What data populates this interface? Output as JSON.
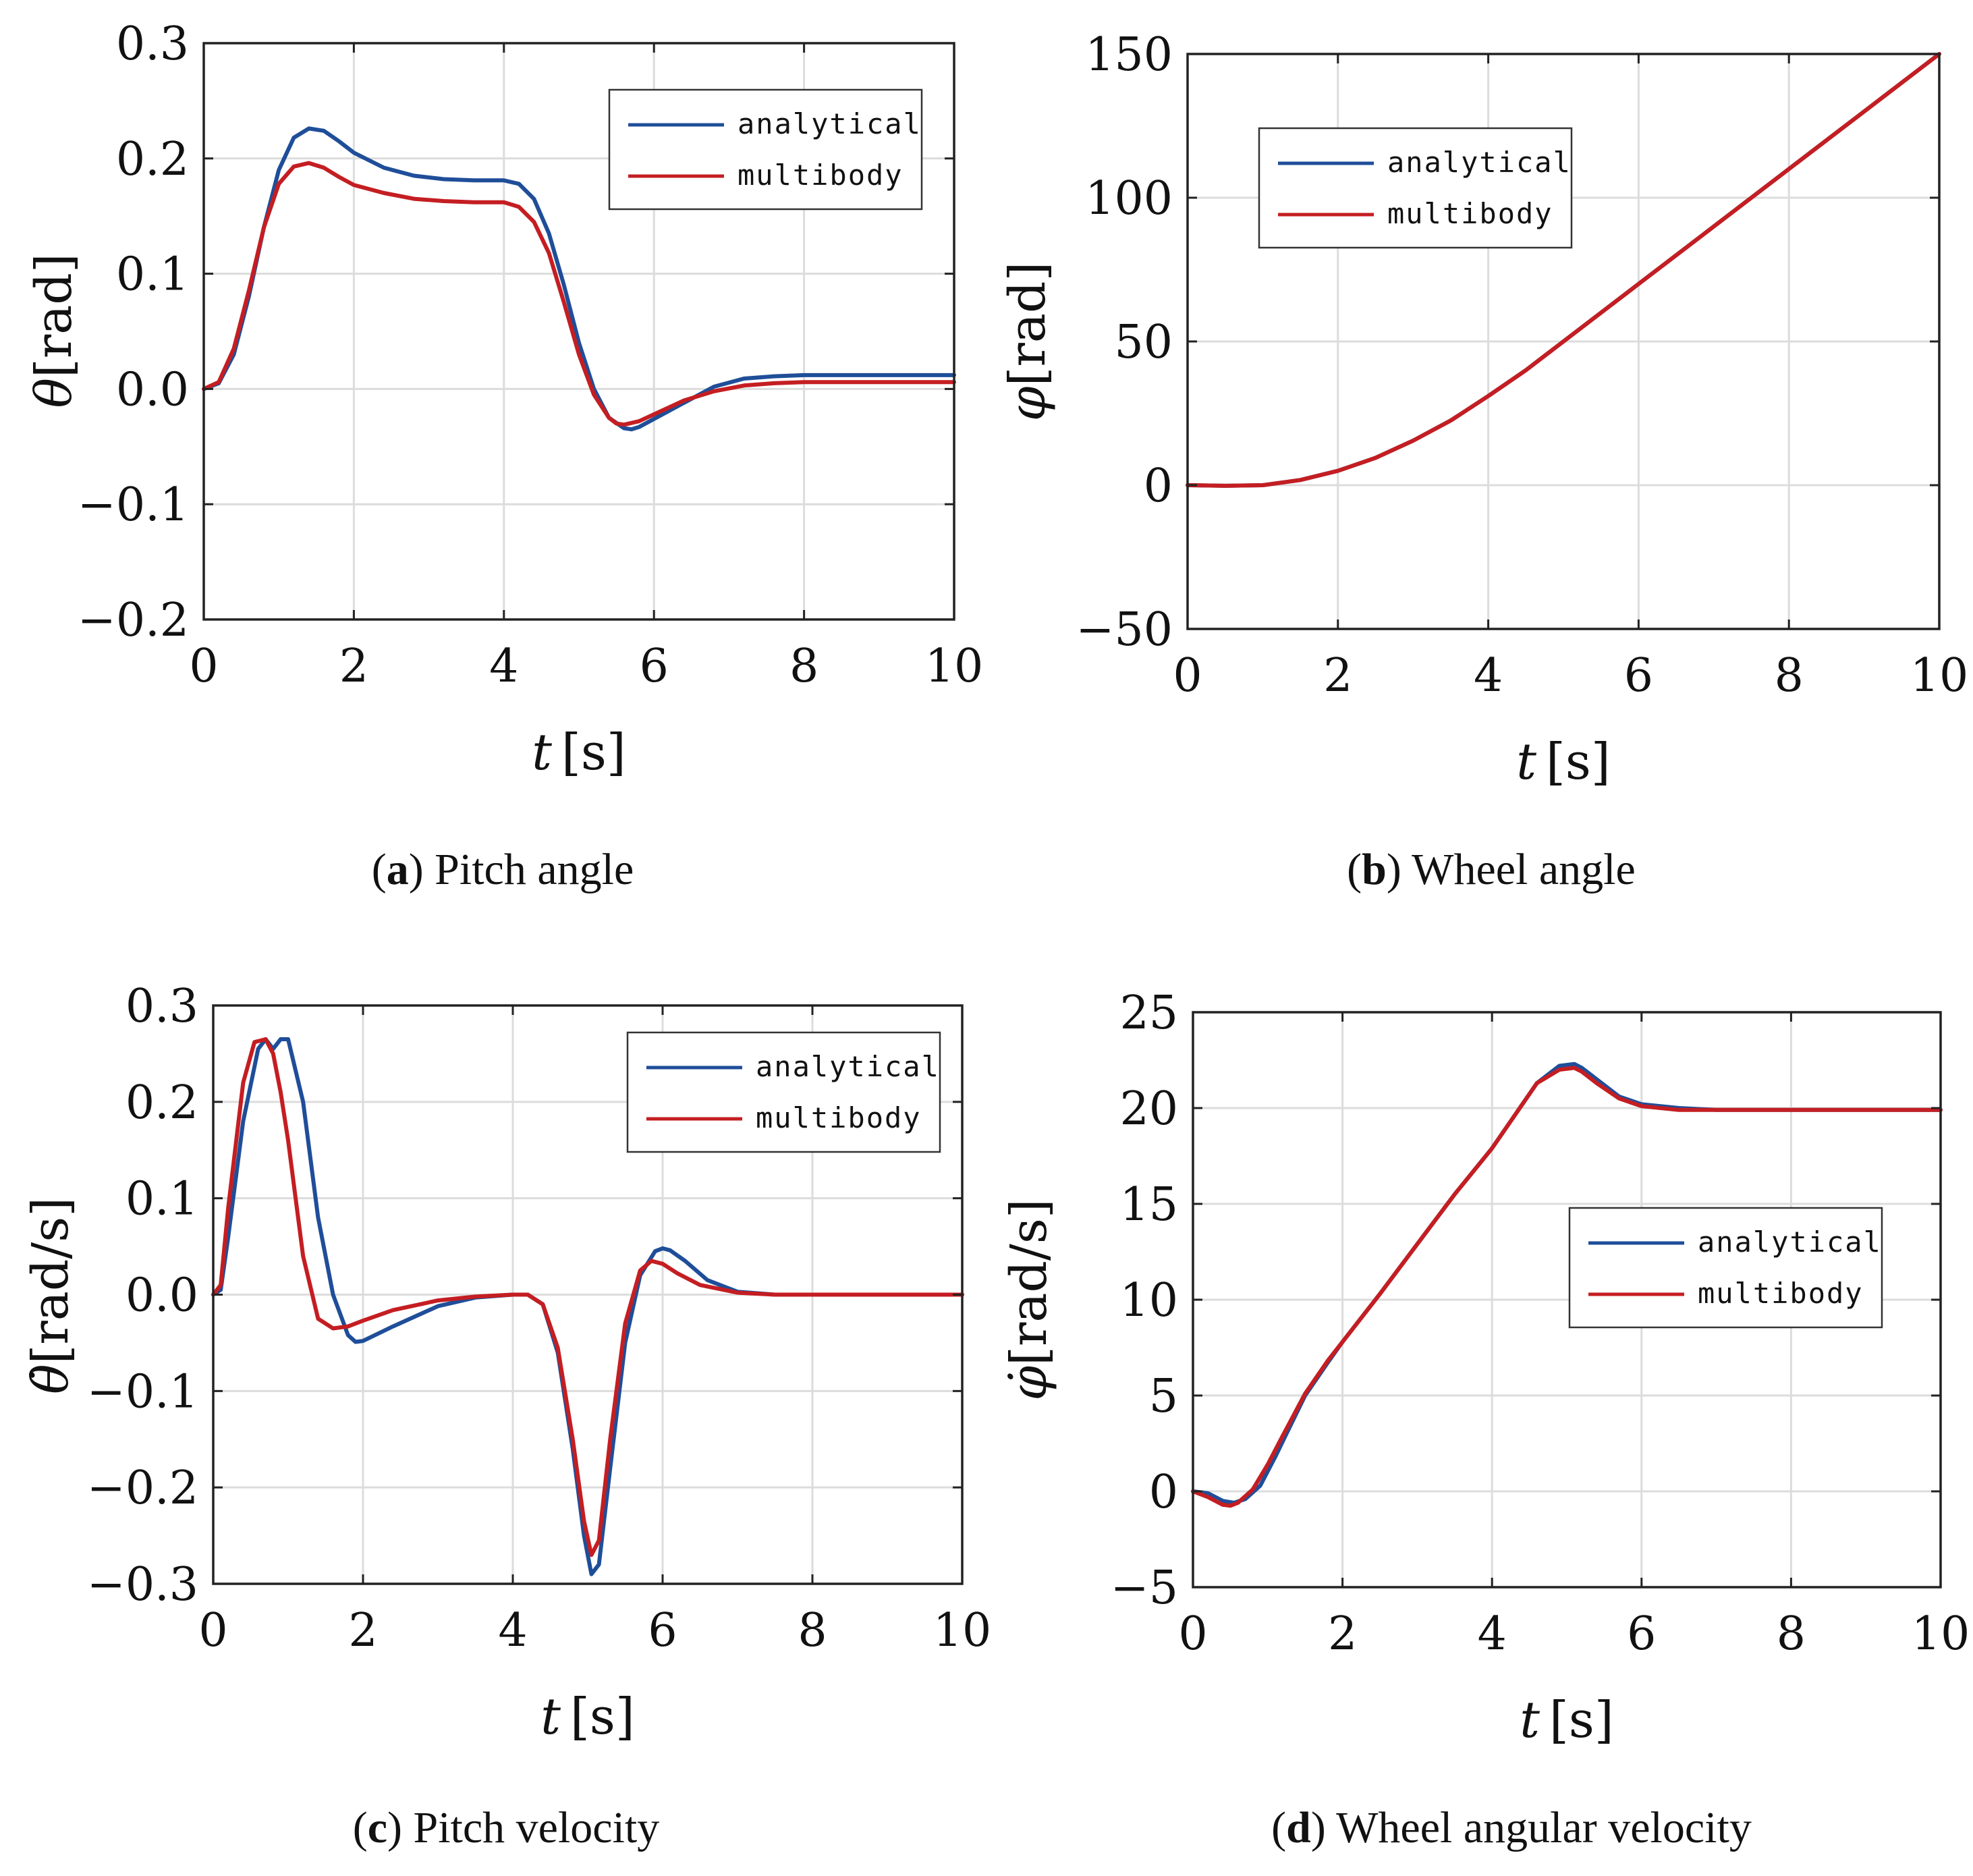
{
  "colors": {
    "analytical": "#1f4e99",
    "multibody": "#c41e22"
  },
  "chart_data": [
    {
      "id": "a",
      "type": "line",
      "caption_letter": "a",
      "caption_text": "Pitch angle",
      "xlabel_var": "t",
      "xlabel_unit": "[s]",
      "ylabel_var": "θ",
      "ylabel_unit": "[rad]",
      "xlim": [
        0,
        10
      ],
      "ylim": [
        -0.2,
        0.3
      ],
      "xticks": [
        0,
        2,
        4,
        6,
        8,
        10
      ],
      "xtick_labels": [
        "0",
        "2",
        "4",
        "6",
        "8",
        "10"
      ],
      "yticks": [
        -0.2,
        -0.1,
        0.0,
        0.1,
        0.2,
        0.3
      ],
      "ytick_labels": [
        "−0.2",
        "−0.1",
        "0.0",
        "0.1",
        "0.2",
        "0.3"
      ],
      "legend": [
        "analytical",
        "multibody"
      ],
      "series": [
        {
          "name": "analytical",
          "x": [
            0,
            0.2,
            0.4,
            0.6,
            0.8,
            1.0,
            1.2,
            1.4,
            1.6,
            1.8,
            2.0,
            2.4,
            2.8,
            3.2,
            3.6,
            4.0,
            4.2,
            4.4,
            4.6,
            4.8,
            5.0,
            5.2,
            5.4,
            5.6,
            5.7,
            5.8,
            6.0,
            6.4,
            6.8,
            7.2,
            7.6,
            8.0,
            9.0,
            10.0
          ],
          "y": [
            0,
            0.005,
            0.03,
            0.08,
            0.14,
            0.19,
            0.218,
            0.226,
            0.224,
            0.215,
            0.205,
            0.192,
            0.185,
            0.182,
            0.181,
            0.181,
            0.178,
            0.165,
            0.135,
            0.09,
            0.04,
            0.0,
            -0.025,
            -0.034,
            -0.035,
            -0.033,
            -0.026,
            -0.012,
            0.002,
            0.009,
            0.011,
            0.012,
            0.012,
            0.012
          ]
        },
        {
          "name": "multibody",
          "x": [
            0,
            0.2,
            0.4,
            0.6,
            0.8,
            1.0,
            1.2,
            1.4,
            1.6,
            1.8,
            2.0,
            2.4,
            2.8,
            3.2,
            3.6,
            4.0,
            4.2,
            4.4,
            4.6,
            4.8,
            5.0,
            5.2,
            5.4,
            5.5,
            5.6,
            5.8,
            6.0,
            6.4,
            6.8,
            7.2,
            7.6,
            8.0,
            9.0,
            10.0
          ],
          "y": [
            0,
            0.006,
            0.035,
            0.085,
            0.14,
            0.178,
            0.193,
            0.196,
            0.192,
            0.184,
            0.177,
            0.17,
            0.165,
            0.163,
            0.162,
            0.162,
            0.158,
            0.145,
            0.118,
            0.075,
            0.03,
            -0.005,
            -0.025,
            -0.03,
            -0.031,
            -0.028,
            -0.022,
            -0.01,
            -0.002,
            0.003,
            0.005,
            0.006,
            0.006,
            0.006
          ]
        }
      ]
    },
    {
      "id": "b",
      "type": "line",
      "caption_letter": "b",
      "caption_text": "Wheel angle",
      "xlabel_var": "t",
      "xlabel_unit": "[s]",
      "ylabel_var": "φ",
      "ylabel_unit": "[rad]",
      "xlim": [
        0,
        10
      ],
      "ylim": [
        -50,
        150
      ],
      "xticks": [
        0,
        2,
        4,
        6,
        8,
        10
      ],
      "xtick_labels": [
        "0",
        "2",
        "4",
        "6",
        "8",
        "10"
      ],
      "yticks": [
        -50,
        0,
        50,
        100,
        150
      ],
      "ytick_labels": [
        "−50",
        "0",
        "50",
        "100",
        "150"
      ],
      "legend": [
        "analytical",
        "multibody"
      ],
      "series": [
        {
          "name": "analytical",
          "x": [
            0,
            0.5,
            1.0,
            1.5,
            2.0,
            2.5,
            3.0,
            3.5,
            4.0,
            4.5,
            5.0,
            5.5,
            6.0,
            7.0,
            8.0,
            9.0,
            10.0
          ],
          "y": [
            0,
            -0.2,
            0,
            1.8,
            5,
            9.5,
            15.5,
            22.5,
            31,
            40,
            50,
            60,
            70,
            90,
            110,
            130,
            150
          ]
        },
        {
          "name": "multibody",
          "x": [
            0,
            0.5,
            1.0,
            1.5,
            2.0,
            2.5,
            3.0,
            3.5,
            4.0,
            4.5,
            5.0,
            5.5,
            6.0,
            7.0,
            8.0,
            9.0,
            10.0
          ],
          "y": [
            0,
            -0.2,
            0,
            1.8,
            5,
            9.5,
            15.5,
            22.5,
            31,
            40,
            50,
            60,
            70,
            90,
            110,
            130,
            150
          ]
        }
      ]
    },
    {
      "id": "c",
      "type": "line",
      "caption_letter": "c",
      "caption_text": "Pitch velocity",
      "xlabel_var": "t",
      "xlabel_unit": "[s]",
      "ylabel_var": "θ̇",
      "ylabel_unit": "[rad/s]",
      "xlim": [
        0,
        10
      ],
      "ylim": [
        -0.3,
        0.3
      ],
      "xticks": [
        0,
        2,
        4,
        6,
        8,
        10
      ],
      "xtick_labels": [
        "0",
        "2",
        "4",
        "6",
        "8",
        "10"
      ],
      "yticks": [
        -0.3,
        -0.2,
        -0.1,
        0.0,
        0.1,
        0.2,
        0.3
      ],
      "ytick_labels": [
        "−0.3",
        "−0.2",
        "−0.1",
        "0.0",
        "0.1",
        "0.2",
        "0.3"
      ],
      "legend": [
        "analytical",
        "multibody"
      ],
      "series": [
        {
          "name": "analytical",
          "x": [
            0,
            0.1,
            0.2,
            0.4,
            0.6,
            0.7,
            0.8,
            0.9,
            1.0,
            1.2,
            1.4,
            1.6,
            1.8,
            1.9,
            2.0,
            2.4,
            3.0,
            3.5,
            4.0,
            4.2,
            4.4,
            4.6,
            4.8,
            4.95,
            5.05,
            5.15,
            5.3,
            5.5,
            5.7,
            5.9,
            6.0,
            6.1,
            6.3,
            6.6,
            7.0,
            7.5,
            8.0,
            10.0
          ],
          "y": [
            0,
            0.005,
            0.06,
            0.18,
            0.255,
            0.265,
            0.255,
            0.265,
            0.265,
            0.2,
            0.08,
            0.0,
            -0.042,
            -0.049,
            -0.048,
            -0.033,
            -0.012,
            -0.003,
            0.0,
            0.0,
            -0.01,
            -0.06,
            -0.16,
            -0.25,
            -0.29,
            -0.28,
            -0.18,
            -0.05,
            0.02,
            0.045,
            0.048,
            0.046,
            0.035,
            0.015,
            0.003,
            0.0,
            0.0,
            0.0
          ]
        },
        {
          "name": "multibody",
          "x": [
            0,
            0.1,
            0.2,
            0.4,
            0.55,
            0.7,
            0.8,
            0.9,
            1.0,
            1.2,
            1.4,
            1.6,
            1.8,
            2.0,
            2.4,
            3.0,
            3.5,
            4.0,
            4.2,
            4.4,
            4.6,
            4.8,
            4.95,
            5.05,
            5.15,
            5.3,
            5.5,
            5.7,
            5.85,
            6.0,
            6.2,
            6.5,
            7.0,
            7.5,
            8.0,
            10.0
          ],
          "y": [
            0,
            0.01,
            0.09,
            0.22,
            0.262,
            0.265,
            0.25,
            0.21,
            0.16,
            0.04,
            -0.025,
            -0.035,
            -0.033,
            -0.027,
            -0.016,
            -0.006,
            -0.002,
            0.0,
            0.0,
            -0.01,
            -0.055,
            -0.15,
            -0.235,
            -0.27,
            -0.255,
            -0.15,
            -0.03,
            0.025,
            0.035,
            0.032,
            0.022,
            0.01,
            0.002,
            0.0,
            0.0,
            0.0
          ]
        }
      ]
    },
    {
      "id": "d",
      "type": "line",
      "caption_letter": "d",
      "caption_text": "Wheel angular velocity",
      "xlabel_var": "t",
      "xlabel_unit": "[s]",
      "ylabel_var": "φ̇",
      "ylabel_unit": "[rad/s]",
      "xlim": [
        0,
        10
      ],
      "ylim": [
        -5,
        25
      ],
      "xticks": [
        0,
        2,
        4,
        6,
        8,
        10
      ],
      "xtick_labels": [
        "0",
        "2",
        "4",
        "6",
        "8",
        "10"
      ],
      "yticks": [
        -5,
        0,
        5,
        10,
        15,
        20,
        25
      ],
      "ytick_labels": [
        "−5",
        "0",
        "5",
        "10",
        "15",
        "20",
        "25"
      ],
      "legend": [
        "analytical",
        "multibody"
      ],
      "series": [
        {
          "name": "analytical",
          "x": [
            0,
            0.2,
            0.4,
            0.55,
            0.7,
            0.9,
            1.1,
            1.3,
            1.5,
            1.8,
            2.0,
            2.5,
            3.0,
            3.5,
            4.0,
            4.3,
            4.6,
            4.9,
            5.1,
            5.2,
            5.4,
            5.7,
            6.0,
            6.5,
            7.0,
            8.0,
            10.0
          ],
          "y": [
            0,
            -0.1,
            -0.5,
            -0.6,
            -0.4,
            0.3,
            1.8,
            3.4,
            5.0,
            6.7,
            7.8,
            10.3,
            12.9,
            15.5,
            17.9,
            19.6,
            21.3,
            22.2,
            22.3,
            22.1,
            21.5,
            20.6,
            20.2,
            20.0,
            19.9,
            19.9,
            19.9
          ]
        },
        {
          "name": "multibody",
          "x": [
            0,
            0.2,
            0.4,
            0.5,
            0.6,
            0.8,
            1.0,
            1.2,
            1.5,
            1.8,
            2.0,
            2.5,
            3.0,
            3.5,
            4.0,
            4.3,
            4.6,
            4.9,
            5.1,
            5.2,
            5.4,
            5.7,
            6.0,
            6.5,
            7.0,
            8.0,
            10.0
          ],
          "y": [
            0,
            -0.3,
            -0.7,
            -0.75,
            -0.6,
            0.1,
            1.4,
            2.9,
            5.1,
            6.8,
            7.8,
            10.3,
            12.9,
            15.5,
            17.9,
            19.6,
            21.3,
            22.0,
            22.1,
            21.9,
            21.3,
            20.5,
            20.1,
            19.9,
            19.9,
            19.9,
            19.9
          ]
        }
      ]
    }
  ]
}
